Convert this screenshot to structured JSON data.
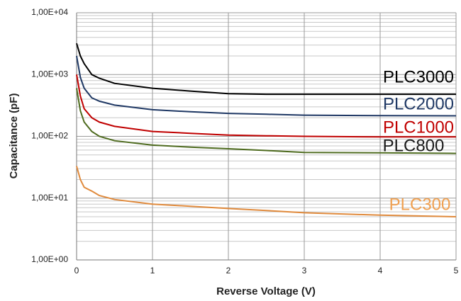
{
  "chart_data": {
    "type": "line",
    "x_label": "Reverse Voltage (V)",
    "y_label": "Capacitance (pF)",
    "yscale": "log",
    "grid": true,
    "xlim": [
      0,
      5
    ],
    "xticks": [
      0,
      1,
      2,
      3,
      4,
      5
    ],
    "ylim": [
      1,
      10000
    ],
    "yticks": [
      {
        "value": 1,
        "label": "1,00E+00"
      },
      {
        "value": 10,
        "label": "1,00E+01"
      },
      {
        "value": 100,
        "label": "1,00E+02"
      },
      {
        "value": 1000,
        "label": "1,00E+03"
      },
      {
        "value": 10000,
        "label": "1,00E+04"
      }
    ],
    "x": [
      0,
      0.05,
      0.1,
      0.2,
      0.3,
      0.5,
      1,
      1.5,
      2,
      2.5,
      3,
      4,
      5
    ],
    "series": [
      {
        "name": "PLC3000",
        "color": "#000000",
        "label_color": "#000000",
        "values": [
          3200,
          2000,
          1500,
          1000,
          870,
          720,
          600,
          540,
          490,
          480,
          480,
          480,
          480
        ]
      },
      {
        "name": "PLC2000",
        "color": "#1f3864",
        "label_color": "#1f3864",
        "values": [
          2000,
          900,
          600,
          420,
          370,
          320,
          270,
          250,
          235,
          228,
          220,
          216,
          215
        ]
      },
      {
        "name": "PLC1000",
        "color": "#c00000",
        "label_color": "#c00000",
        "values": [
          1000,
          450,
          280,
          200,
          170,
          145,
          120,
          112,
          105,
          102,
          100,
          98,
          98
        ]
      },
      {
        "name": "PLC800",
        "color": "#4e6b1f",
        "label_color": "#1a1a1a",
        "values": [
          600,
          260,
          170,
          120,
          100,
          85,
          72,
          67,
          63,
          59,
          55,
          54,
          53
        ]
      },
      {
        "name": "PLC300",
        "color": "#e08a3c",
        "label_color": "#f0a050",
        "values": [
          33,
          20,
          15,
          13,
          11,
          9.5,
          8,
          7.4,
          6.8,
          6.3,
          5.8,
          5.3,
          5
        ]
      }
    ]
  }
}
